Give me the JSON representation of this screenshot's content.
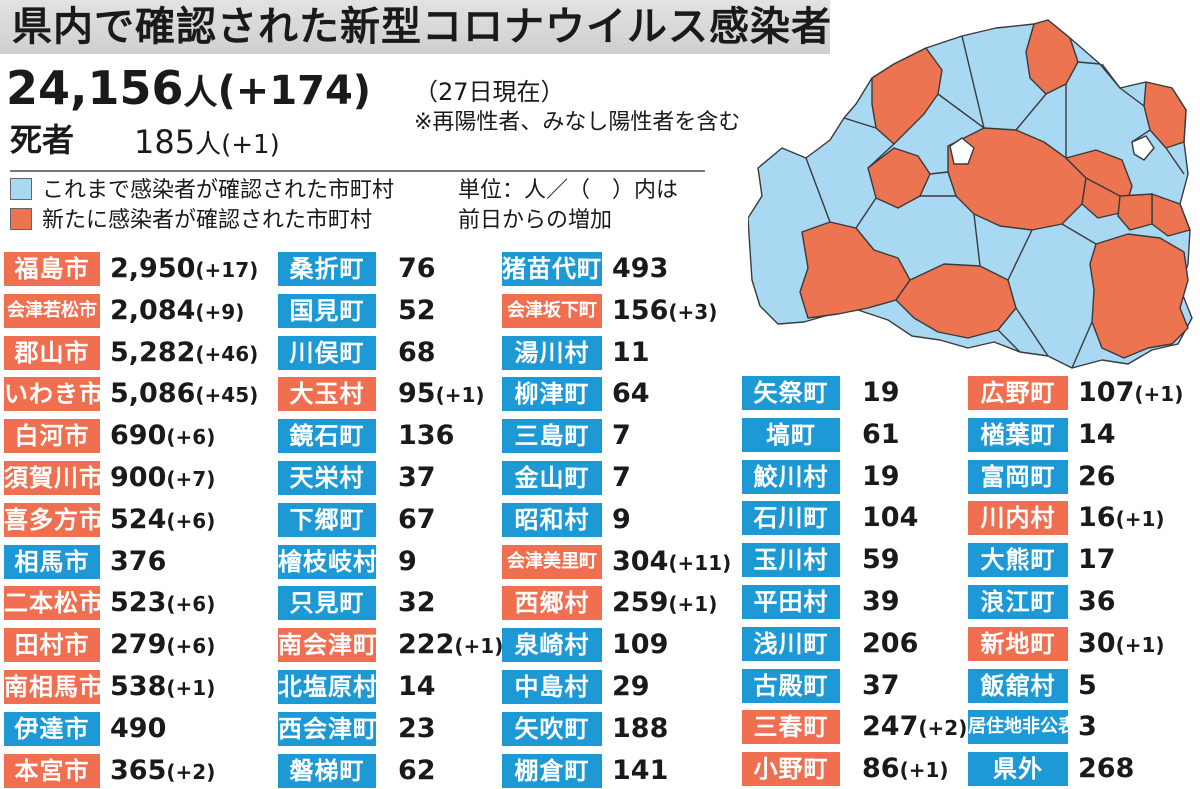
{
  "colors": {
    "old": "#1d9ad6",
    "new": "#ef6f50",
    "map_old": "#a9d8f2",
    "map_new": "#ec7450",
    "map_none": "#ffffff",
    "border": "#3a3a3a"
  },
  "header": {
    "title": "県内で確認された新型コロナウイルス感染者"
  },
  "total": {
    "value": "24,156",
    "unit": "人",
    "diff": "(+174)",
    "as_of": "（27日現在）",
    "note": "※再陽性者、みなし陽性者を含む"
  },
  "deaths": {
    "label": "死者",
    "value": "185",
    "unit": "人",
    "diff": "(+1)"
  },
  "legend": {
    "old": "これまで感染者が確認された市町村",
    "new": "新たに感染者が確認された市町村",
    "unit_line1": "単位：人／（　）内は",
    "unit_line2": "前日からの増加"
  },
  "map": {
    "icon": "fukushima-prefecture-map"
  },
  "columns": [
    [
      {
        "name": "福島市",
        "value": "2,950",
        "diff": "(+17)",
        "type": "new"
      },
      {
        "name": "会津若松市",
        "value": "2,084",
        "diff": "(+9)",
        "type": "new"
      },
      {
        "name": "郡山市",
        "value": "5,282",
        "diff": "(+46)",
        "type": "new"
      },
      {
        "name": "いわき市",
        "value": "5,086",
        "diff": "(+45)",
        "type": "new"
      },
      {
        "name": "白河市",
        "value": "690",
        "diff": "(+6)",
        "type": "new"
      },
      {
        "name": "須賀川市",
        "value": "900",
        "diff": "(+7)",
        "type": "new"
      },
      {
        "name": "喜多方市",
        "value": "524",
        "diff": "(+6)",
        "type": "new"
      },
      {
        "name": "相馬市",
        "value": "376",
        "diff": "",
        "type": "old"
      },
      {
        "name": "二本松市",
        "value": "523",
        "diff": "(+6)",
        "type": "new"
      },
      {
        "name": "田村市",
        "value": "279",
        "diff": "(+6)",
        "type": "new"
      },
      {
        "name": "南相馬市",
        "value": "538",
        "diff": "(+1)",
        "type": "new"
      },
      {
        "name": "伊達市",
        "value": "490",
        "diff": "",
        "type": "old"
      },
      {
        "name": "本宮市",
        "value": "365",
        "diff": "(+2)",
        "type": "new"
      }
    ],
    [
      {
        "name": "桑折町",
        "value": "76",
        "diff": "",
        "type": "old"
      },
      {
        "name": "国見町",
        "value": "52",
        "diff": "",
        "type": "old"
      },
      {
        "name": "川俣町",
        "value": "68",
        "diff": "",
        "type": "old"
      },
      {
        "name": "大玉村",
        "value": "95",
        "diff": "(+1)",
        "type": "new"
      },
      {
        "name": "鏡石町",
        "value": "136",
        "diff": "",
        "type": "old"
      },
      {
        "name": "天栄村",
        "value": "37",
        "diff": "",
        "type": "old"
      },
      {
        "name": "下郷町",
        "value": "67",
        "diff": "",
        "type": "old"
      },
      {
        "name": "檜枝岐村",
        "value": "9",
        "diff": "",
        "type": "old"
      },
      {
        "name": "只見町",
        "value": "32",
        "diff": "",
        "type": "old"
      },
      {
        "name": "南会津町",
        "value": "222",
        "diff": "(+1)",
        "type": "new"
      },
      {
        "name": "北塩原村",
        "value": "14",
        "diff": "",
        "type": "old"
      },
      {
        "name": "西会津町",
        "value": "23",
        "diff": "",
        "type": "old"
      },
      {
        "name": "磐梯町",
        "value": "62",
        "diff": "",
        "type": "old"
      }
    ],
    [
      {
        "name": "猪苗代町",
        "value": "493",
        "diff": "",
        "type": "old"
      },
      {
        "name": "会津坂下町",
        "value": "156",
        "diff": "(+3)",
        "type": "new"
      },
      {
        "name": "湯川村",
        "value": "11",
        "diff": "",
        "type": "old"
      },
      {
        "name": "柳津町",
        "value": "64",
        "diff": "",
        "type": "old"
      },
      {
        "name": "三島町",
        "value": "7",
        "diff": "",
        "type": "old"
      },
      {
        "name": "金山町",
        "value": "7",
        "diff": "",
        "type": "old"
      },
      {
        "name": "昭和村",
        "value": "9",
        "diff": "",
        "type": "old"
      },
      {
        "name": "会津美里町",
        "value": "304",
        "diff": "(+11)",
        "type": "new"
      },
      {
        "name": "西郷村",
        "value": "259",
        "diff": "(+1)",
        "type": "new"
      },
      {
        "name": "泉崎村",
        "value": "109",
        "diff": "",
        "type": "old"
      },
      {
        "name": "中島村",
        "value": "29",
        "diff": "",
        "type": "old"
      },
      {
        "name": "矢吹町",
        "value": "188",
        "diff": "",
        "type": "old"
      },
      {
        "name": "棚倉町",
        "value": "141",
        "diff": "",
        "type": "old"
      }
    ],
    [
      {
        "name": "矢祭町",
        "value": "19",
        "diff": "",
        "type": "old"
      },
      {
        "name": "塙町",
        "value": "61",
        "diff": "",
        "type": "old"
      },
      {
        "name": "鮫川村",
        "value": "19",
        "diff": "",
        "type": "old"
      },
      {
        "name": "石川町",
        "value": "104",
        "diff": "",
        "type": "old"
      },
      {
        "name": "玉川村",
        "value": "59",
        "diff": "",
        "type": "old"
      },
      {
        "name": "平田村",
        "value": "39",
        "diff": "",
        "type": "old"
      },
      {
        "name": "浅川町",
        "value": "206",
        "diff": "",
        "type": "old"
      },
      {
        "name": "古殿町",
        "value": "37",
        "diff": "",
        "type": "old"
      },
      {
        "name": "三春町",
        "value": "247",
        "diff": "(+2)",
        "type": "new"
      },
      {
        "name": "小野町",
        "value": "86",
        "diff": "(+1)",
        "type": "new"
      }
    ],
    [
      {
        "name": "広野町",
        "value": "107",
        "diff": "(+1)",
        "type": "new"
      },
      {
        "name": "楢葉町",
        "value": "14",
        "diff": "",
        "type": "old"
      },
      {
        "name": "富岡町",
        "value": "26",
        "diff": "",
        "type": "old"
      },
      {
        "name": "川内村",
        "value": "16",
        "diff": "(+1)",
        "type": "new"
      },
      {
        "name": "大熊町",
        "value": "17",
        "diff": "",
        "type": "old"
      },
      {
        "name": "浪江町",
        "value": "36",
        "diff": "",
        "type": "old"
      },
      {
        "name": "新地町",
        "value": "30",
        "diff": "(+1)",
        "type": "new"
      },
      {
        "name": "飯舘村",
        "value": "5",
        "diff": "",
        "type": "old"
      },
      {
        "name": "居住地非公表",
        "value": "3",
        "diff": "",
        "type": "old"
      },
      {
        "name": "県外",
        "value": "268",
        "diff": "",
        "type": "old"
      }
    ]
  ]
}
